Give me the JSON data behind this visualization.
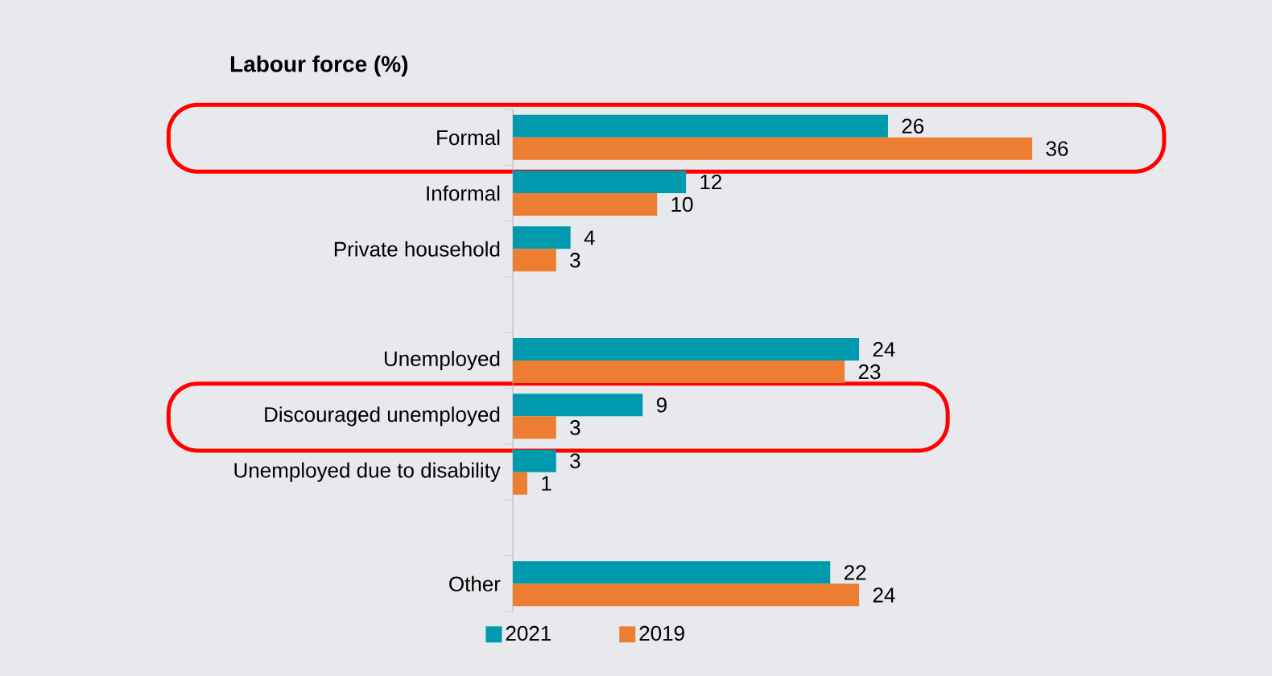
{
  "chart_data": {
    "type": "bar",
    "orientation": "horizontal",
    "title": "Labour force (%)",
    "data_labels": true,
    "legend": "bottom",
    "categories": [
      "Formal",
      "Informal",
      "Private household",
      null,
      "Unemployed",
      "Discouraged unemployed",
      "Unemployed due to disability",
      null,
      "Other"
    ],
    "series": [
      {
        "name": "2021",
        "color": "#009aae",
        "values": [
          26,
          12,
          4,
          null,
          24,
          9,
          3,
          null,
          22
        ]
      },
      {
        "name": "2019",
        "color": "#ed7d31",
        "values": [
          36,
          10,
          3,
          null,
          23,
          3,
          1,
          null,
          24
        ]
      }
    ]
  }
}
